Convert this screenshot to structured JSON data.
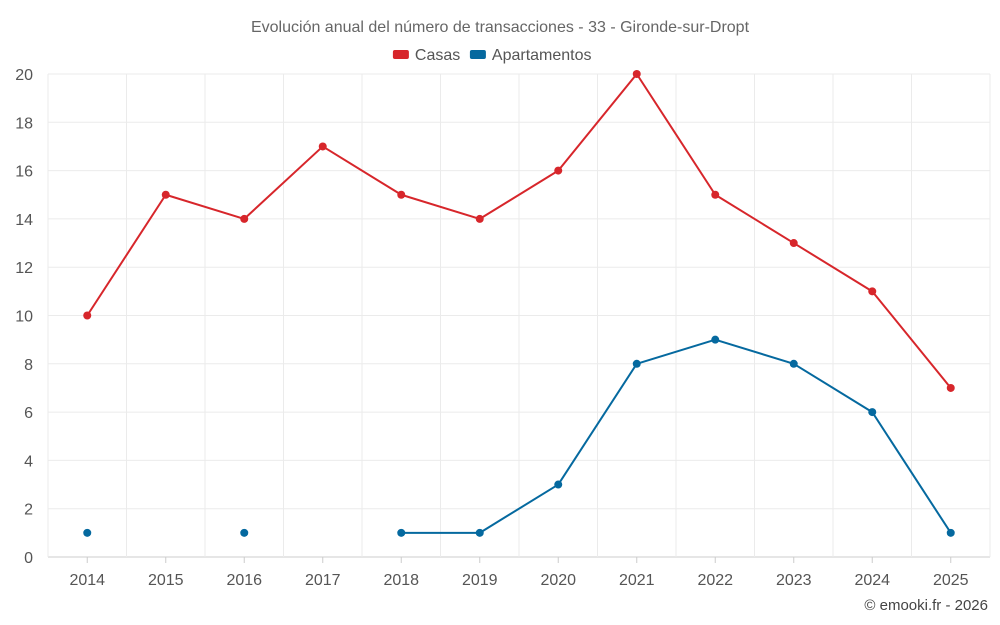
{
  "chart_data": {
    "type": "line",
    "title": "Evolución anual del número de transacciones - 33 - Gironde-sur-Dropt",
    "categories": [
      "2014",
      "2015",
      "2016",
      "2017",
      "2018",
      "2019",
      "2020",
      "2021",
      "2022",
      "2023",
      "2024",
      "2025"
    ],
    "ylim": [
      0,
      20
    ],
    "yticks": [
      0,
      2,
      4,
      6,
      8,
      10,
      12,
      14,
      16,
      18,
      20
    ],
    "grid": true,
    "legend_position": "top-center",
    "series": [
      {
        "name": "Casas",
        "color": "#d7262b",
        "values": [
          10,
          15,
          14,
          17,
          15,
          14,
          16,
          20,
          15,
          13,
          11,
          7
        ]
      },
      {
        "name": "Apartamentos",
        "color": "#05699f",
        "values": [
          1,
          null,
          1,
          null,
          1,
          1,
          3,
          8,
          9,
          8,
          6,
          1
        ]
      }
    ]
  },
  "credit": "© emooki.fr - 2026"
}
